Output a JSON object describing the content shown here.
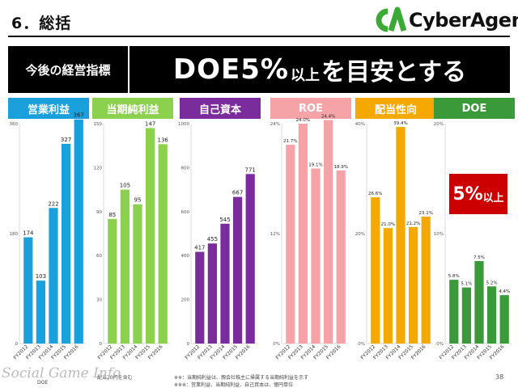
{
  "header": {
    "section_title": "6．総括",
    "logo_text": "CyberAgent."
  },
  "kpi": {
    "label": "今後の経営指標",
    "headline_big": "DOE5%",
    "headline_small": "以上",
    "headline_rest": "を目安とする"
  },
  "target_badge": {
    "pct": "5%",
    "suffix": "以上"
  },
  "footnotes": {
    "left_partial": "配当20円を含む",
    "left_partial2": "DOE",
    "right_line1": "※※：当期純利益は、親会社株主に帰属する当期純利益を示す",
    "right_line2": "※※※：営業利益、当期純利益、自己資本は、億円単位"
  },
  "page_number": "38",
  "watermark": "Social Game Info",
  "colors": {
    "operating_profit": "#1aa0dc",
    "net_income": "#8cd14e",
    "equity": "#7a2b9c",
    "roe": "#f6a3a8",
    "payout": "#f5a800",
    "doe": "#3a9a3a",
    "badge": "#cc0000"
  },
  "chart_data": [
    {
      "type": "bar",
      "title": "営業利益",
      "categories": [
        "FY2012",
        "FY2013",
        "FY2014",
        "FY2015",
        "FY2016"
      ],
      "values": [
        174,
        103,
        222,
        327,
        367
      ],
      "value_labels": [
        "174",
        "103",
        "222",
        "327",
        "367"
      ],
      "ylim": [
        0,
        360
      ],
      "yticks": [
        "0",
        "180",
        "360"
      ],
      "color": "#1aa0dc"
    },
    {
      "type": "bar",
      "title": "当期純利益",
      "categories": [
        "FY2012",
        "FY2013",
        "FY2014",
        "FY2015",
        "FY2016"
      ],
      "values": [
        85,
        105,
        95,
        147,
        136
      ],
      "value_labels": [
        "85",
        "105",
        "95",
        "147",
        "136"
      ],
      "ylim": [
        0,
        150
      ],
      "yticks": [
        "0",
        "30",
        "60",
        "90",
        "120",
        "150"
      ],
      "color": "#8cd14e"
    },
    {
      "type": "bar",
      "title": "自己資本",
      "categories": [
        "FY2012",
        "FY2013",
        "FY2014",
        "FY2015",
        "FY2016"
      ],
      "values": [
        417,
        455,
        545,
        667,
        771
      ],
      "value_labels": [
        "417",
        "455",
        "545",
        "667",
        "771"
      ],
      "ylim": [
        0,
        1000
      ],
      "yticks": [
        "0",
        "200",
        "400",
        "600",
        "800",
        "1000"
      ],
      "color": "#7a2b9c"
    },
    {
      "type": "bar",
      "title": "ROE",
      "categories": [
        "FY2012",
        "FY2013",
        "FY2014",
        "FY2015",
        "FY2016"
      ],
      "values": [
        21.7,
        24.0,
        19.1,
        24.4,
        18.9
      ],
      "value_labels": [
        "21.7%",
        "24.0%",
        "19.1%",
        "24.4%",
        "18.9%"
      ],
      "ylim": [
        0,
        24
      ],
      "yticks": [
        "0%",
        "12%",
        "24%"
      ],
      "color": "#f6a3a8"
    },
    {
      "type": "bar",
      "title": "配当性向",
      "categories": [
        "FY2012",
        "FY2013",
        "FY2014",
        "FY2015",
        "FY2016"
      ],
      "values": [
        26.6,
        21.0,
        39.4,
        21.2,
        23.1
      ],
      "value_labels": [
        "26.6%",
        "21.0%",
        "39.4%",
        "21.2%",
        "23.1%"
      ],
      "ylim": [
        0,
        40
      ],
      "yticks": [
        "0%",
        "20%",
        "40%"
      ],
      "color": "#f5a800"
    },
    {
      "type": "bar",
      "title": "DOE",
      "categories": [
        "FY2012",
        "FY2013",
        "FY2014",
        "FY2015",
        "FY2016"
      ],
      "values": [
        5.8,
        5.1,
        7.5,
        5.2,
        4.4
      ],
      "value_labels": [
        "5.8%",
        "5.1%",
        "7.5%",
        "5.2%",
        "4.4%"
      ],
      "ylim": [
        0,
        20
      ],
      "yticks": [
        "0%",
        "10%",
        "20%"
      ],
      "color": "#3a9a3a"
    }
  ]
}
